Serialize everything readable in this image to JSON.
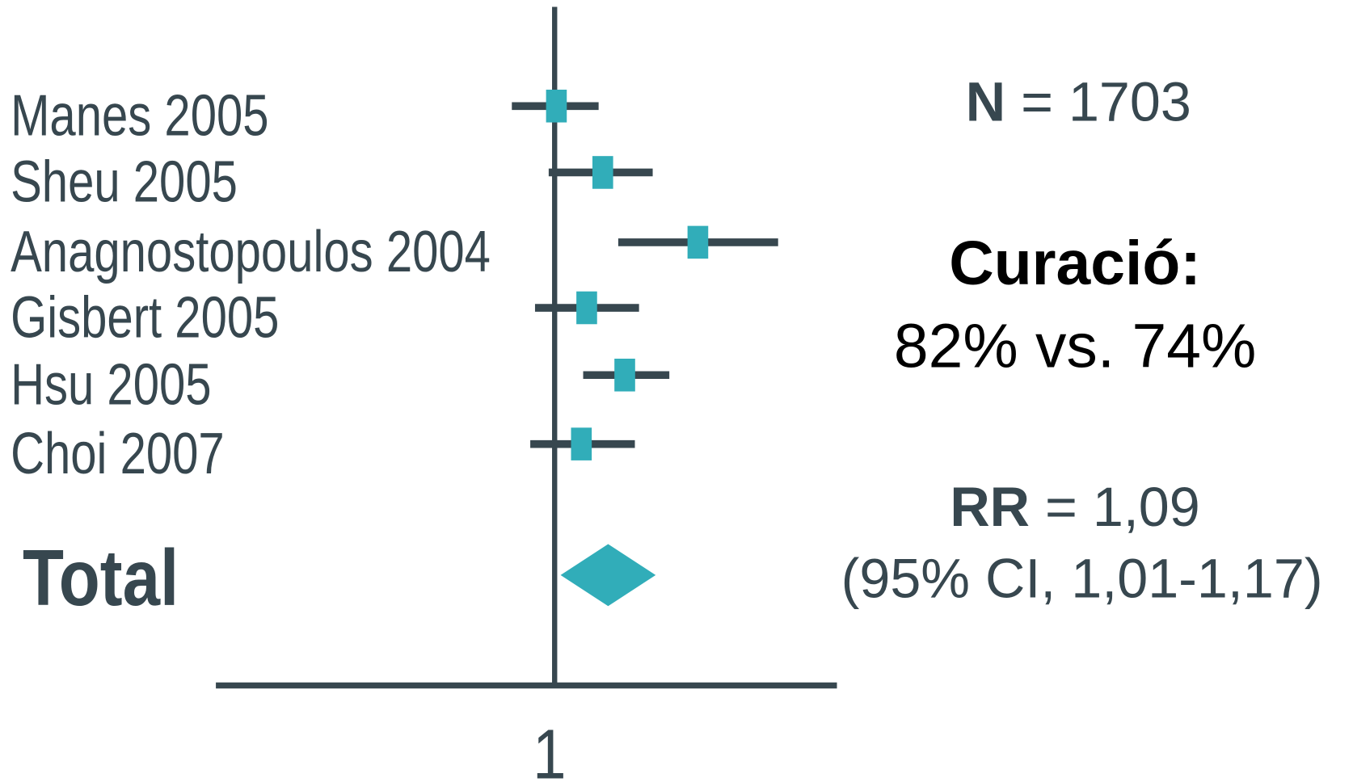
{
  "chart_data": {
    "type": "forest",
    "studies": [
      "Manes 2005",
      "Sheu 2005",
      "Anagnostopoulos 2004",
      "Gisbert 2005",
      "Hsu 2005",
      "Choi 2007"
    ],
    "values": [
      1.003,
      1.081,
      1.241,
      1.054,
      1.118,
      1.045
    ],
    "lower": [
      0.928,
      0.99,
      1.107,
      0.967,
      1.048,
      0.959
    ],
    "upper": [
      1.074,
      1.165,
      1.376,
      1.142,
      1.193,
      1.135
    ],
    "total_label": "Total",
    "total": {
      "value": 1.09,
      "lower": 1.01,
      "upper": 1.17
    },
    "xlim": [
      0.43,
      1.475
    ],
    "xticks": [
      1
    ],
    "color": "#31adb9",
    "line_color": "#37474f"
  },
  "annotations": {
    "n_label": "N",
    "n_value": "= 1703",
    "cure_title": "Curació:",
    "cure_values": "82% vs. 74%",
    "rr_label": "RR",
    "rr_value": "= 1,09",
    "ci_text": "(95% CI, 1,01-1,17)"
  }
}
